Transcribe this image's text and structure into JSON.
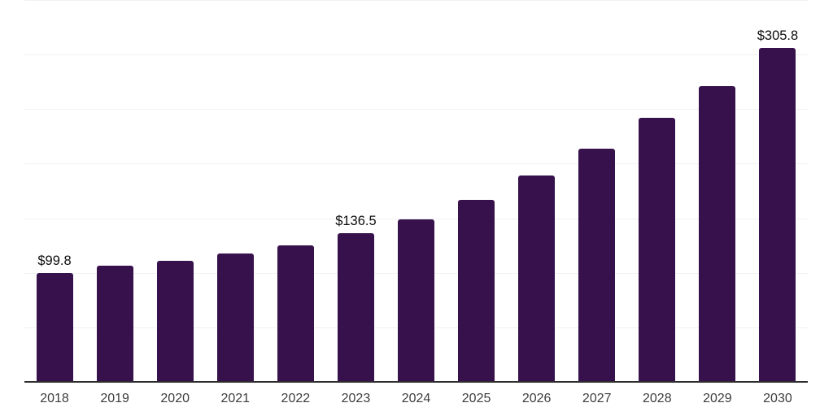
{
  "chart_data": {
    "type": "bar",
    "title": "",
    "xlabel": "",
    "ylabel": "",
    "categories": [
      "2018",
      "2019",
      "2020",
      "2021",
      "2022",
      "2023",
      "2024",
      "2025",
      "2026",
      "2027",
      "2028",
      "2029",
      "2030"
    ],
    "values": [
      99.8,
      106.5,
      110.6,
      117.7,
      125.1,
      136.5,
      148.6,
      167.0,
      189.4,
      213.7,
      242.0,
      271.3,
      305.8
    ],
    "data_labels": {
      "2018": "$99.8",
      "2023": "$136.5",
      "2030": "$305.8"
    },
    "ylim": [
      0,
      350
    ],
    "grid_step": 50,
    "grid": true,
    "legend_position": "none",
    "y_axis_tick_labels_visible": false,
    "colors": {
      "bar": "#36114B",
      "gridline": "#f1f1f4",
      "axis": "#2d2d2d",
      "tick_label": "#3d3d3d",
      "data_label": "#0e0e0e",
      "background": "#ffffff"
    }
  }
}
